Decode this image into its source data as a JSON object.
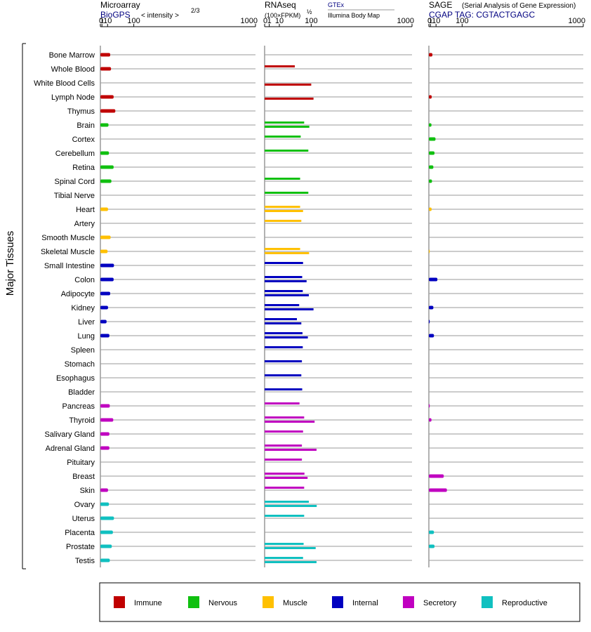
{
  "chart_data": {
    "type": "bar",
    "y_axis_label": "Major Tissues",
    "tissues": [
      "Bone Marrow",
      "Whole Blood",
      "White Blood Cells",
      "Lymph Node",
      "Thymus",
      "Brain",
      "Cortex",
      "Cerebellum",
      "Retina",
      "Spinal Cord",
      "Tibial Nerve",
      "Heart",
      "Artery",
      "Smooth Muscle",
      "Skeletal Muscle",
      "Small Intestine",
      "Colon",
      "Adipocyte",
      "Kidney",
      "Liver",
      "Lung",
      "Spleen",
      "Stomach",
      "Esophagus",
      "Bladder",
      "Pancreas",
      "Thyroid",
      "Salivary Gland",
      "Adrenal Gland",
      "Pituitary",
      "Breast",
      "Skin",
      "Ovary",
      "Uterus",
      "Placenta",
      "Prostate",
      "Testis"
    ],
    "tissue_groups": [
      "Immune",
      "Immune",
      "Immune",
      "Immune",
      "Immune",
      "Nervous",
      "Nervous",
      "Nervous",
      "Nervous",
      "Nervous",
      "Nervous",
      "Muscle",
      "Muscle",
      "Muscle",
      "Muscle",
      "Internal",
      "Internal",
      "Internal",
      "Internal",
      "Internal",
      "Internal",
      "Internal",
      "Internal",
      "Internal",
      "Internal",
      "Secretory",
      "Secretory",
      "Secretory",
      "Secretory",
      "Secretory",
      "Secretory",
      "Secretory",
      "Reproductive",
      "Reproductive",
      "Reproductive",
      "Reproductive",
      "Reproductive"
    ],
    "legend": [
      {
        "name": "Immune",
        "color": "#c00000"
      },
      {
        "name": "Nervous",
        "color": "#10c010"
      },
      {
        "name": "Muscle",
        "color": "#ffc000"
      },
      {
        "name": "Internal",
        "color": "#0000c0"
      },
      {
        "name": "Secretory",
        "color": "#c000c0"
      },
      {
        "name": "Reproductive",
        "color": "#10c0c0"
      }
    ],
    "panels": [
      {
        "id": "microarray",
        "title": "Microarray",
        "source": "BioGPS",
        "scale_label": "< intensity >",
        "scale_exponent": "2/3",
        "scale_power": 0.6667,
        "scale_max": 1000,
        "ticks": [
          {
            "v": 0,
            "label": "0"
          },
          {
            "v": 1,
            "label": "1"
          },
          {
            "v": 10,
            "label": "10"
          },
          {
            "v": 100,
            "label": "100"
          },
          {
            "v": 1000,
            "label": "1000"
          }
        ],
        "bars": [
          [
            16
          ],
          [
            18
          ],
          [
            null
          ],
          [
            25
          ],
          [
            30
          ],
          [
            12
          ],
          [
            null
          ],
          [
            13
          ],
          [
            25
          ],
          [
            19
          ],
          [
            null
          ],
          [
            11
          ],
          [
            null
          ],
          [
            17
          ],
          [
            10
          ],
          [
            26
          ],
          [
            25
          ],
          [
            16
          ],
          [
            11
          ],
          [
            8
          ],
          [
            14
          ],
          [
            null
          ],
          [
            null
          ],
          [
            null
          ],
          [
            null
          ],
          [
            15
          ],
          [
            24
          ],
          [
            14
          ],
          [
            14
          ],
          [
            null
          ],
          [
            null
          ],
          [
            11
          ],
          [
            13
          ],
          [
            26
          ],
          [
            23
          ],
          [
            20
          ],
          [
            15
          ]
        ]
      },
      {
        "id": "rnaseq",
        "title": "RNAseq",
        "scale_label": "(100×FPKM)",
        "scale_exponent": "½",
        "source_top": "GTEx",
        "source_bottom": "Illumina Body Map",
        "scale_power": 0.5,
        "scale_max": 1000,
        "ticks": [
          {
            "v": 0,
            "label": "0"
          },
          {
            "v": 1,
            "label": "1"
          },
          {
            "v": 10,
            "label": "10"
          },
          {
            "v": 100,
            "label": "100"
          },
          {
            "v": 1000,
            "label": "1000"
          }
        ],
        "bars": [
          [
            null
          ],
          [
            42
          ],
          [
            null,
            100
          ],
          [
            null,
            110
          ],
          [
            null
          ],
          [
            72,
            92
          ],
          [
            60
          ],
          [
            88
          ],
          [
            null
          ],
          [
            58
          ],
          [
            88
          ],
          [
            58,
            68
          ],
          [
            62
          ],
          [
            null
          ],
          [
            58,
            91
          ],
          [
            68
          ],
          [
            65,
            81
          ],
          [
            67,
            90
          ],
          [
            55,
            110
          ],
          [
            48,
            62
          ],
          [
            66,
            86
          ],
          [
            67
          ],
          [
            64
          ],
          [
            62
          ],
          [
            65
          ],
          [
            56
          ],
          [
            72,
            115
          ],
          [
            68
          ],
          [
            64,
            124
          ],
          [
            64
          ],
          [
            73,
            85
          ],
          [
            72
          ],
          [
            90,
            125
          ],
          [
            72
          ],
          [
            null
          ],
          [
            70,
            120
          ],
          [
            68,
            124
          ]
        ]
      },
      {
        "id": "sage",
        "title": "SAGE",
        "title_note": "(Serial Analysis of Gene Expression)",
        "source": "CGAP TAG: CGTACTGAGC",
        "scale_power": 0.6667,
        "scale_max": 1000,
        "ticks": [
          {
            "v": 0,
            "label": "0"
          },
          {
            "v": 1,
            "label": "1"
          },
          {
            "v": 10,
            "label": "10"
          },
          {
            "v": 100,
            "label": "100"
          },
          {
            "v": 1000,
            "label": "1000"
          }
        ],
        "bars": [
          [
            3.5
          ],
          [
            null
          ],
          [
            null
          ],
          [
            2.5
          ],
          [
            null
          ],
          [
            2.2
          ],
          [
            9
          ],
          [
            7
          ],
          [
            5
          ],
          [
            2.9
          ],
          [
            null
          ],
          [
            2.4
          ],
          [
            null
          ],
          [
            null
          ],
          [
            0.002
          ],
          [
            null
          ],
          [
            13
          ],
          [
            null
          ],
          [
            5
          ],
          [
            0.01
          ],
          [
            6
          ],
          [
            null
          ],
          [
            null
          ],
          [
            null
          ],
          [
            null
          ],
          [
            0.005
          ],
          [
            2.2
          ],
          [
            null
          ],
          [
            null
          ],
          [
            null
          ],
          [
            30
          ],
          [
            40
          ],
          [
            null
          ],
          [
            null
          ],
          [
            6
          ],
          [
            7
          ],
          [
            null
          ]
        ]
      }
    ]
  }
}
